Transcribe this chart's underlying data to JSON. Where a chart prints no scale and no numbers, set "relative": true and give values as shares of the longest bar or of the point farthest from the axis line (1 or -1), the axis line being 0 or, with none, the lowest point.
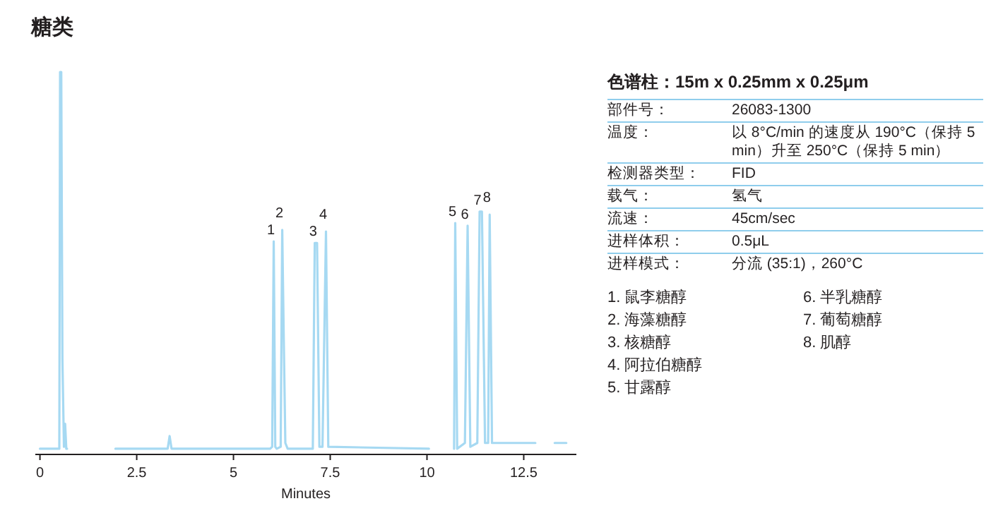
{
  "chart_data": {
    "type": "line",
    "title": "糖类",
    "xlabel": "Minutes",
    "relative": true,
    "grid": false,
    "xlim": [
      -0.12,
      13.86
    ],
    "xticks": [
      0,
      2.5,
      5,
      7.5,
      10,
      12.5
    ],
    "series": [
      {
        "color": "#a6d9f2",
        "x": [
          0,
          0.5,
          0.52,
          0.55,
          0.58,
          0.62,
          0.65,
          0.68,
          0.7
        ],
        "values": [
          0.015,
          0.015,
          1.0,
          1.0,
          0.25,
          0.02,
          0.08,
          0.015,
          0.015
        ]
      },
      {
        "color": "#a6d9f2",
        "x": [
          1.95,
          3.3,
          3.35,
          3.4,
          5.95,
          6.0,
          6.04,
          6.08,
          6.12,
          6.22,
          6.26,
          6.3,
          6.34,
          6.4,
          7.05,
          7.1,
          7.16,
          7.22,
          7.3,
          7.39,
          7.45,
          10.05
        ],
        "values": [
          0.015,
          0.015,
          0.048,
          0.015,
          0.015,
          0.02,
          0.557,
          0.02,
          0.015,
          0.02,
          0.587,
          0.3,
          0.03,
          0.015,
          0.015,
          0.553,
          0.553,
          0.02,
          0.02,
          0.583,
          0.02,
          0.015
        ]
      },
      {
        "color": "#a6d9f2",
        "x": [
          10.7,
          10.73,
          10.78,
          10.98,
          11.05,
          11.12,
          11.3,
          11.36,
          11.42,
          11.5,
          11.58,
          11.62,
          11.68,
          12.8
        ],
        "values": [
          0.015,
          0.605,
          0.015,
          0.03,
          0.598,
          0.02,
          0.03,
          0.635,
          0.635,
          0.03,
          0.03,
          0.627,
          0.03,
          0.03
        ]
      },
      {
        "color": "#a6d9f2",
        "x": [
          13.3,
          13.6
        ],
        "values": [
          0.03,
          0.03
        ]
      }
    ],
    "annotations": [
      {
        "text": "1",
        "x": 6.04,
        "y": 0.557
      },
      {
        "text": "2",
        "x": 6.26,
        "y": 0.587
      },
      {
        "text": "3",
        "x": 7.13,
        "y": 0.553
      },
      {
        "text": "4",
        "x": 7.39,
        "y": 0.583
      },
      {
        "text": "5",
        "x": 10.73,
        "y": 0.605
      },
      {
        "text": "6",
        "x": 11.05,
        "y": 0.598
      },
      {
        "text": "7",
        "x": 11.38,
        "y": 0.635
      },
      {
        "text": "8",
        "x": 11.62,
        "y": 0.627
      },
      "色谱柱：15m x 0.25mm x 0.25μm",
      "部件号：",
      "26083-1300",
      "温度：",
      "以 8°C/min 的速度从 190°C（保持 5 min）升至 250°C（保持 5 min）",
      "检测器类型：",
      "FID",
      "载气：",
      "氢气",
      "流速：",
      "45cm/sec",
      "进样体积：",
      "0.5μL",
      "进样模式：",
      "分流 (35:1)，260°C",
      "1. 鼠李糖醇",
      "2. 海藻糖醇",
      "3. 核糖醇",
      "4. 阿拉伯糖醇",
      "5. 甘露醇",
      "6. 半乳糖醇",
      "7. 葡萄糖醇",
      "8. 肌醇"
    ]
  }
}
